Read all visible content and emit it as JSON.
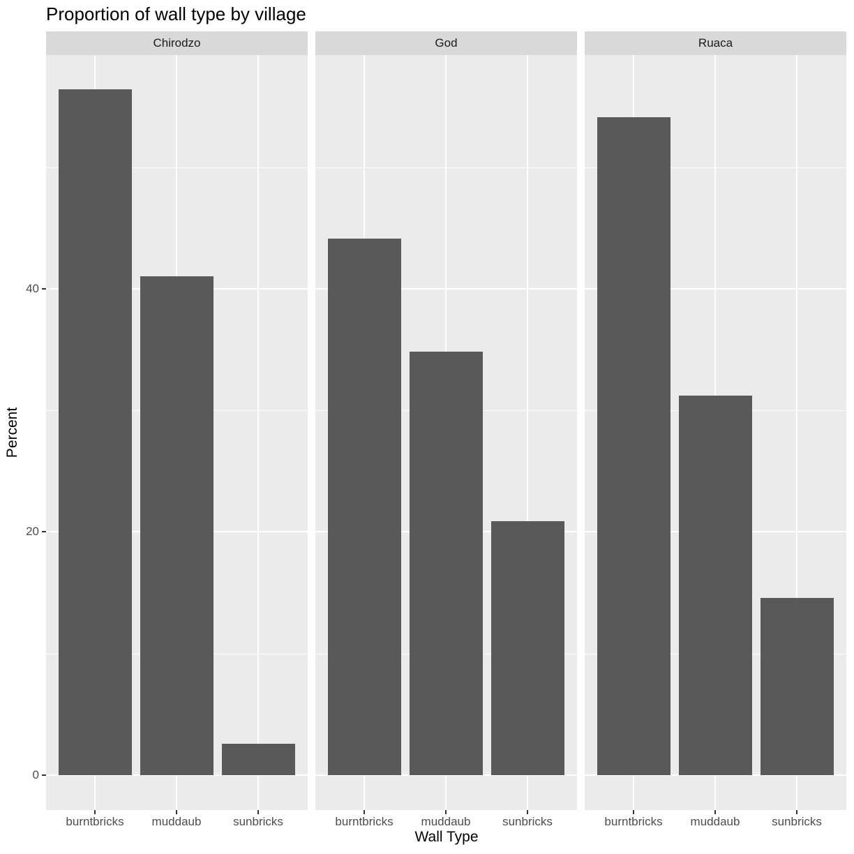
{
  "chart_data": {
    "type": "bar",
    "title": "Proportion of wall type by village",
    "xlabel": "Wall Type",
    "ylabel": "Percent",
    "ylim": [
      -2.8,
      59.3
    ],
    "yticks": [
      0,
      20,
      40
    ],
    "categories": [
      "burntbricks",
      "muddaub",
      "sunbricks"
    ],
    "facets": [
      {
        "name": "Chirodzo",
        "values": [
          56.4,
          41.0,
          2.6
        ]
      },
      {
        "name": "God",
        "values": [
          44.1,
          34.8,
          20.9
        ]
      },
      {
        "name": "Ruaca",
        "values": [
          54.1,
          31.2,
          14.6
        ]
      }
    ],
    "grid": true,
    "legend": "none"
  },
  "labels": {
    "title": "Proportion of wall type by village",
    "xaxis": "Wall Type",
    "yaxis": "Percent",
    "yticks": [
      "0",
      "20",
      "40"
    ],
    "categories": [
      "burntbricks",
      "muddaub",
      "sunbricks"
    ],
    "facets": [
      "Chirodzo",
      "God",
      "Ruaca"
    ]
  },
  "colors": {
    "bar": "#595959",
    "panel_bg": "#ebebeb",
    "strip_bg": "#d9d9d9"
  }
}
